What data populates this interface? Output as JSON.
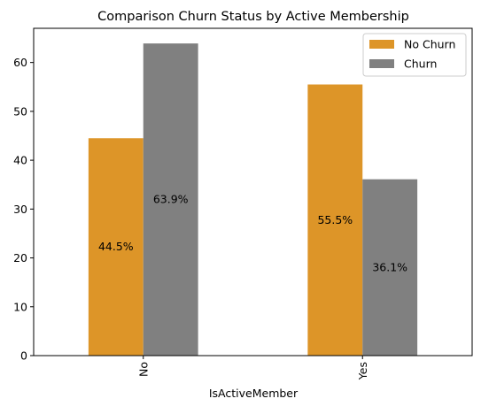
{
  "chart_data": {
    "type": "bar",
    "title": "Comparison Churn Status by Active Membership",
    "xlabel": "IsActiveMember",
    "ylabel": "",
    "categories": [
      "No",
      "Yes"
    ],
    "ylim": [
      0,
      67
    ],
    "yticks": [
      "0",
      "10",
      "20",
      "30",
      "40",
      "50",
      "60"
    ],
    "series": [
      {
        "name": "No Churn",
        "color": "#dd9528",
        "values": [
          44.5,
          55.5
        ],
        "labels": [
          "44.5%",
          "55.5%"
        ]
      },
      {
        "name": "Churn",
        "color": "#808080",
        "values": [
          63.9,
          36.1
        ],
        "labels": [
          "63.9%",
          "36.1%"
        ]
      }
    ],
    "legend": "top-right",
    "grid": false
  }
}
